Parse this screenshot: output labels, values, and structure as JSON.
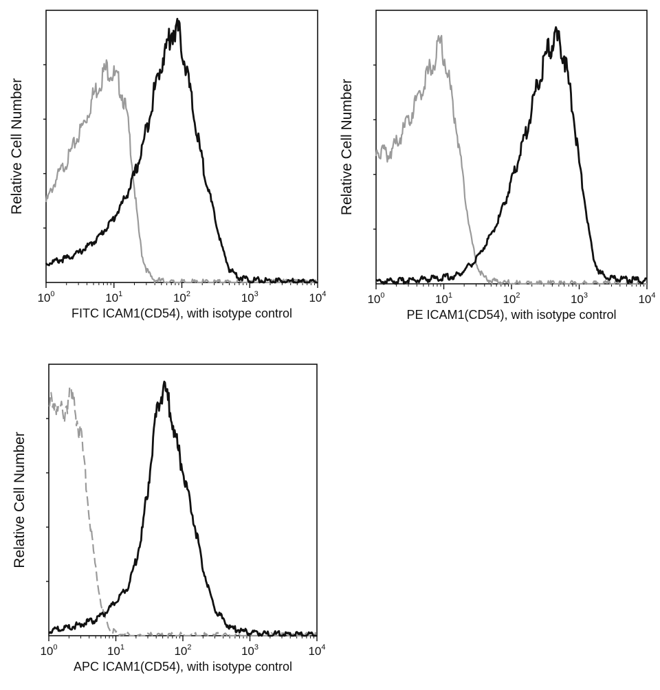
{
  "chart_data": [
    {
      "type": "line",
      "title": "",
      "xlabel": "FITC  ICAM1(CD54),  with isotype control",
      "ylabel": "Relative Cell Number",
      "xscale": "log",
      "xlim": [
        1,
        10000
      ],
      "ylim": [
        0,
        100
      ],
      "x_ticks": [
        {
          "base": "10",
          "exp": "0"
        },
        {
          "base": "10",
          "exp": "1"
        },
        {
          "base": "10",
          "exp": "2"
        },
        {
          "base": "10",
          "exp": "3"
        },
        {
          "base": "10",
          "exp": "4"
        }
      ],
      "series": [
        {
          "name": "isotype control",
          "color": "#9a9a9a",
          "style": "solid",
          "x": [
            1,
            1.5,
            2,
            3,
            4,
            5,
            6,
            7,
            8,
            9,
            10,
            12,
            14,
            16,
            18,
            20,
            23,
            26,
            30,
            35,
            40,
            50,
            70
          ],
          "values": [
            30,
            40,
            45,
            55,
            62,
            70,
            74,
            78,
            80,
            79,
            77,
            74,
            68,
            60,
            48,
            35,
            20,
            10,
            5,
            2,
            1,
            0.5,
            0
          ]
        },
        {
          "name": "ICAM1(CD54)",
          "color": "#111111",
          "style": "solid",
          "x": [
            1,
            2,
            3,
            5,
            7,
            10,
            15,
            20,
            25,
            30,
            40,
            50,
            60,
            70,
            80,
            90,
            100,
            120,
            150,
            200,
            300,
            400,
            500,
            700,
            1000,
            2000,
            10000
          ],
          "values": [
            7,
            9,
            11,
            15,
            19,
            24,
            32,
            40,
            48,
            57,
            72,
            82,
            88,
            93,
            95,
            93,
            88,
            78,
            62,
            45,
            25,
            12,
            5,
            2,
            1,
            0.5,
            0
          ]
        }
      ]
    },
    {
      "type": "line",
      "title": "",
      "xlabel": "PE  ICAM1(CD54),  with isotype control",
      "ylabel": "Relative Cell Number",
      "xscale": "log",
      "xlim": [
        1,
        10000
      ],
      "ylim": [
        0,
        100
      ],
      "x_ticks": [
        {
          "base": "10",
          "exp": "0"
        },
        {
          "base": "10",
          "exp": "1"
        },
        {
          "base": "10",
          "exp": "2"
        },
        {
          "base": "10",
          "exp": "3"
        },
        {
          "base": "10",
          "exp": "4"
        }
      ],
      "series": [
        {
          "name": "isotype control",
          "color": "#9a9a9a",
          "style": "solid",
          "x": [
            1,
            1.5,
            2,
            3,
            4,
            5,
            6,
            7,
            8,
            9,
            10,
            12,
            14,
            16,
            18,
            20,
            25,
            30,
            35,
            40,
            50,
            80,
            150
          ],
          "values": [
            50,
            48,
            52,
            60,
            68,
            75,
            78,
            82,
            86,
            90,
            85,
            75,
            65,
            55,
            45,
            35,
            18,
            8,
            4,
            2,
            1,
            0.5,
            0
          ]
        },
        {
          "name": "ICAM1(CD54)",
          "color": "#111111",
          "style": "solid",
          "x": [
            1,
            2,
            4,
            8,
            15,
            20,
            30,
            40,
            60,
            80,
            100,
            150,
            200,
            300,
            400,
            500,
            600,
            800,
            1000,
            1300,
            1600,
            2000,
            3000,
            10000
          ],
          "values": [
            1,
            1,
            1.5,
            2,
            3,
            5,
            9,
            14,
            22,
            30,
            38,
            52,
            66,
            82,
            90,
            90,
            85,
            65,
            45,
            25,
            10,
            4,
            2,
            1
          ]
        }
      ]
    },
    {
      "type": "line",
      "title": "",
      "xlabel": "APC ICAM1(CD54), with isotype control",
      "ylabel": "Relative Cell Number",
      "xscale": "log",
      "xlim": [
        1,
        10000
      ],
      "ylim": [
        0,
        100
      ],
      "x_ticks": [
        {
          "base": "10",
          "exp": "0"
        },
        {
          "base": "10",
          "exp": "1"
        },
        {
          "base": "10",
          "exp": "2"
        },
        {
          "base": "10",
          "exp": "3"
        },
        {
          "base": "10",
          "exp": "4"
        }
      ],
      "series": [
        {
          "name": "isotype control",
          "color": "#9a9a9a",
          "style": "dashed",
          "x": [
            1,
            1.3,
            1.6,
            2,
            2.5,
            3,
            3.5,
            4,
            5,
            6,
            7,
            8,
            10,
            13,
            20
          ],
          "values": [
            85,
            88,
            82,
            90,
            85,
            75,
            60,
            45,
            25,
            12,
            6,
            3,
            1,
            0.5,
            0
          ]
        },
        {
          "name": "ICAM1(CD54)",
          "color": "#111111",
          "style": "solid",
          "x": [
            1,
            2,
            5,
            8,
            10,
            15,
            20,
            25,
            30,
            35,
            40,
            45,
            50,
            60,
            70,
            80,
            100,
            150,
            200,
            300,
            500,
            1000,
            3000,
            10000
          ],
          "values": [
            2,
            3,
            6,
            10,
            13,
            18,
            28,
            40,
            55,
            70,
            82,
            90,
            92,
            88,
            80,
            72,
            62,
            42,
            25,
            10,
            3,
            1,
            0.5,
            0
          ]
        }
      ]
    }
  ]
}
